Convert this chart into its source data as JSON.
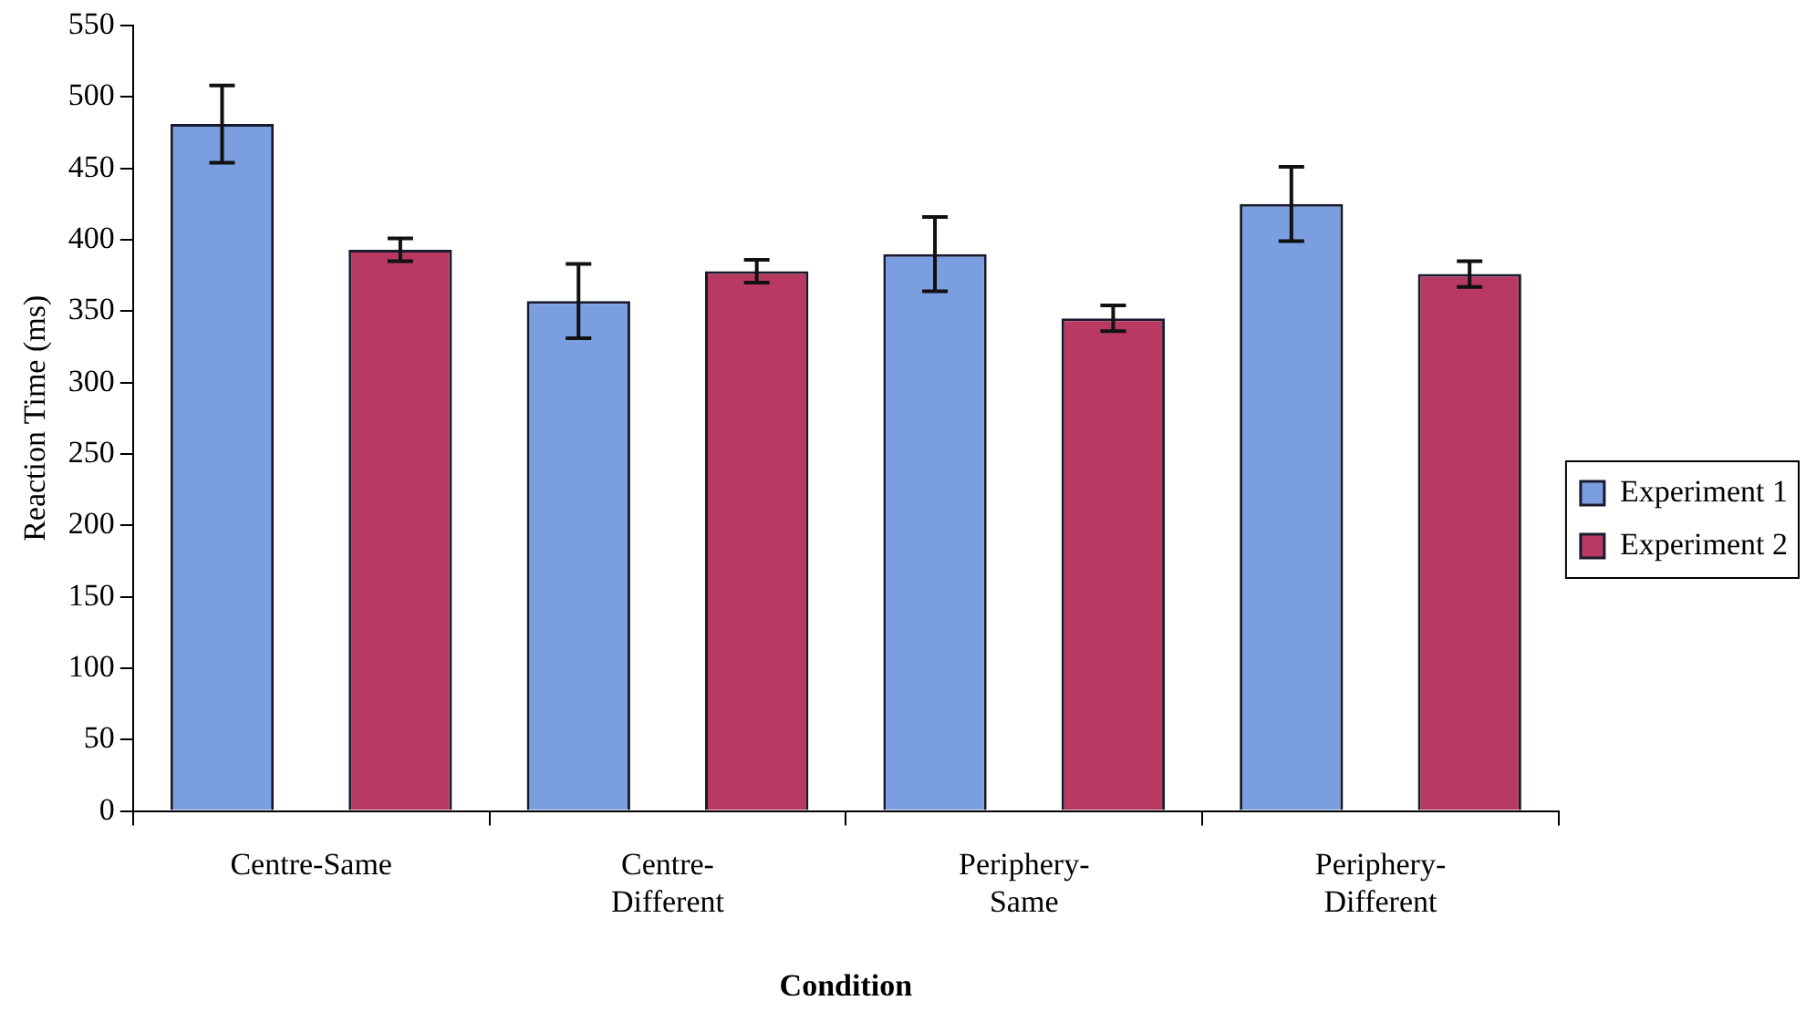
{
  "chart_data": {
    "type": "bar",
    "xlabel": "Condition",
    "ylabel": "Reaction Time (ms)",
    "categories": [
      "Centre-Same",
      "Centre-\nDifferent",
      "Periphery-\nSame",
      "Periphery-\nDifferent"
    ],
    "series": [
      {
        "name": "Experiment 1",
        "color": "#7b9ee0",
        "values": [
          481,
          357,
          390,
          425
        ],
        "errors": [
          27,
          26,
          26,
          26
        ]
      },
      {
        "name": "Experiment 2",
        "color": "#b83a63",
        "values": [
          393,
          378,
          345,
          376
        ],
        "errors": [
          8,
          8,
          9,
          9
        ]
      }
    ],
    "ylim": [
      0,
      550
    ],
    "yticks": [
      0,
      50,
      100,
      150,
      200,
      250,
      300,
      350,
      400,
      450,
      500,
      550
    ],
    "grid": false,
    "legend": "right"
  }
}
